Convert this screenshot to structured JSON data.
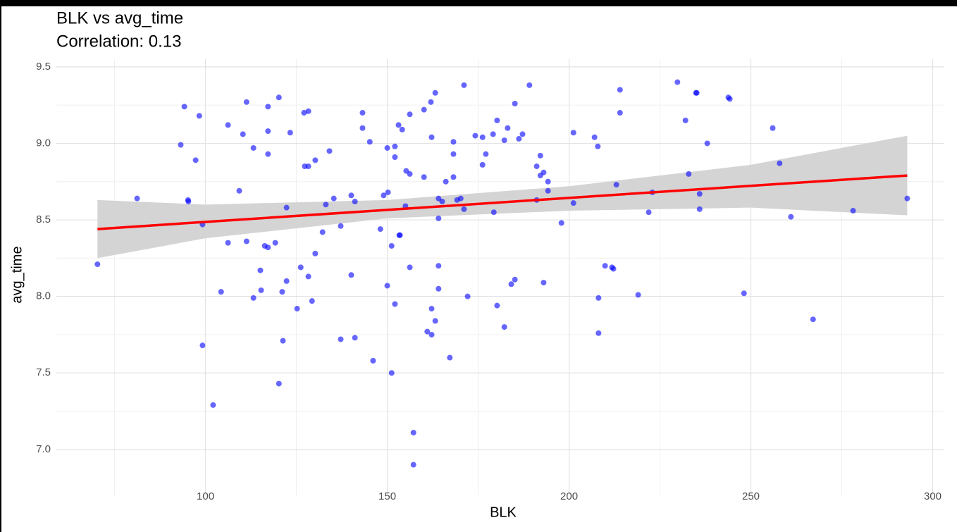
{
  "chart_data": {
    "type": "scatter",
    "title": "BLK vs avg_time",
    "subtitle": "Correlation: 0.13",
    "x_label": "BLK",
    "y_label": "avg_time",
    "color": "#0000ff",
    "x": [
      70.3,
      81.2,
      93.2,
      94.2,
      95.2,
      95.3,
      97.3,
      98.3,
      99.2,
      99.2,
      102.1,
      104.3,
      106.2,
      106.2,
      109.3,
      110.3,
      111.3,
      111.3,
      113.2,
      113.2,
      115.1,
      115.3,
      116.3,
      117.2,
      117.2,
      117.2,
      117.2,
      119.2,
      120.2,
      120.2,
      121.1,
      121.3,
      122.3,
      122.3,
      123.3,
      125.2,
      126.2,
      127.1,
      127.3,
      128.3,
      128.3,
      128.3,
      129.3,
      130.2,
      130.2,
      132.2,
      133.1,
      134.1,
      135.3,
      137.2,
      137.2,
      140.1,
      140.1,
      141.1,
      141.1,
      143.2,
      143.2,
      145.2,
      146.1,
      148.1,
      149.0,
      150,
      150,
      150.2,
      151.2,
      151.2,
      152.1,
      152.1,
      152.1,
      153.1,
      153.3,
      153.5,
      154.1,
      155.0,
      155.2,
      156.2,
      156.2,
      156.2,
      157.2,
      157.2,
      160.1,
      160.1,
      161.0,
      162.0,
      162.2,
      162.2,
      162.2,
      163.2,
      163.2,
      164.1,
      164.1,
      164.1,
      164.1,
      165.1,
      166.1,
      167.2,
      168.2,
      168.2,
      168.2,
      169.2,
      170.2,
      171.1,
      171.1,
      172.1,
      174.2,
      176.2,
      176.2,
      177.1,
      179.1,
      179.3,
      180.2,
      180.2,
      182.2,
      182.2,
      183.1,
      184.1,
      185.1,
      185.1,
      186.2,
      187.2,
      189.1,
      191.1,
      191.1,
      192.1,
      192.1,
      193.0,
      193.0,
      194.2,
      194.2,
      197.9,
      201.2,
      201.2,
      207.0,
      207.9,
      208.1,
      208.1,
      209.9,
      211.8,
      212.2,
      213.0,
      214.0,
      214.0,
      219.0,
      221.9,
      222.9,
      229.8,
      232.0,
      232.9,
      234.9,
      235.1,
      235.9,
      235.9,
      238.0,
      243.8,
      244.2,
      248.1,
      256.0,
      257.9,
      261.0,
      267.1,
      278.1,
      293.0
    ],
    "y": [
      8.21,
      8.64,
      8.99,
      9.24,
      8.63,
      8.62,
      8.89,
      9.18,
      8.47,
      7.68,
      7.29,
      8.03,
      9.12,
      8.35,
      8.69,
      9.06,
      9.27,
      8.36,
      8.97,
      7.99,
      8.17,
      8.04,
      8.33,
      9.24,
      9.08,
      8.93,
      8.32,
      8.35,
      9.3,
      7.43,
      8.03,
      7.71,
      8.58,
      8.1,
      9.07,
      7.92,
      8.19,
      9.2,
      8.85,
      9.21,
      8.85,
      8.13,
      7.97,
      8.89,
      8.28,
      8.42,
      8.6,
      8.95,
      8.64,
      8.46,
      7.72,
      8.66,
      8.14,
      8.62,
      7.73,
      9.2,
      9.1,
      9.01,
      7.58,
      8.44,
      8.66,
      8.97,
      8.07,
      8.68,
      8.33,
      7.5,
      8.98,
      8.91,
      7.95,
      9.12,
      8.4,
      8.4,
      9.09,
      8.59,
      8.82,
      9.19,
      8.8,
      8.19,
      7.11,
      6.9,
      9.22,
      8.78,
      7.77,
      9.27,
      9.04,
      7.92,
      7.75,
      9.33,
      7.84,
      8.64,
      8.51,
      8.2,
      8.05,
      8.62,
      8.75,
      7.6,
      8.93,
      8.78,
      9.01,
      8.63,
      8.64,
      9.38,
      8.57,
      8.0,
      9.05,
      9.04,
      8.86,
      8.93,
      9.06,
      8.55,
      9.15,
      7.94,
      9.02,
      7.8,
      9.1,
      8.08,
      9.26,
      8.11,
      9.03,
      9.06,
      9.38,
      8.85,
      8.63,
      8.92,
      8.79,
      8.81,
      8.09,
      8.75,
      8.69,
      8.48,
      9.07,
      8.61,
      9.04,
      8.98,
      7.99,
      7.76,
      8.2,
      8.19,
      8.18,
      8.73,
      9.35,
      9.2,
      8.01,
      8.55,
      8.68,
      9.4,
      9.15,
      8.8,
      9.33,
      9.33,
      8.67,
      8.57,
      9.0,
      9.3,
      9.29,
      8.02,
      9.1,
      8.87,
      8.52,
      7.85,
      8.56,
      8.64
    ],
    "fit": {
      "x": [
        70.3,
        293.0
      ],
      "y": [
        8.44,
        8.79
      ],
      "color": "#ff0000"
    },
    "band": {
      "x": [
        70.3,
        100,
        150,
        200,
        250,
        293.0
      ],
      "lower": [
        8.25,
        8.38,
        8.51,
        8.56,
        8.58,
        8.53
      ],
      "upper": [
        8.63,
        8.6,
        8.63,
        8.72,
        8.86,
        9.05
      ],
      "color": "#d4d4d4"
    },
    "xlim": [
      59,
      303
    ],
    "ylim": [
      6.7,
      9.55
    ],
    "xticks": [
      100,
      150,
      200,
      250,
      300
    ],
    "yticks": [
      {
        "value": 7,
        "label": "7.0"
      },
      7.5,
      {
        "value": 8,
        "label": "8.0"
      },
      8.5,
      {
        "value": 9,
        "label": "9.0"
      },
      9.5
    ],
    "x_minor_ticks": [
      75,
      125,
      175,
      225,
      275
    ],
    "y_minor_ticks": [
      7.25,
      7.75,
      8.25,
      8.75,
      9.25
    ],
    "grid": true
  }
}
